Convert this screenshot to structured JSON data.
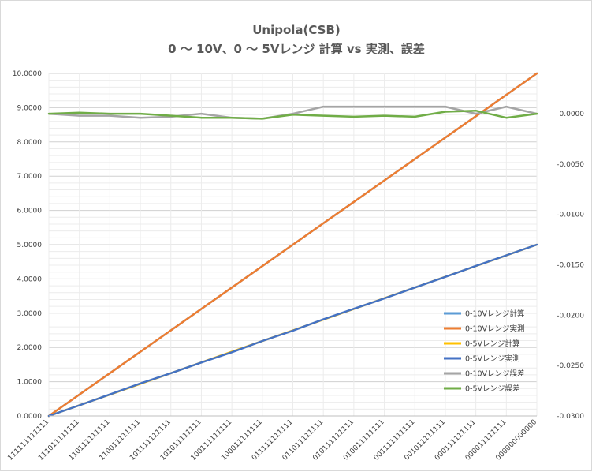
{
  "chart_data": {
    "type": "line",
    "title": "Unipola(CSB)",
    "subtitle": "0 ～ 10V、0 ～ 5Vレンジ 計算 vs 実測、誤差",
    "categories": [
      "111111111111",
      "111011111111",
      "110111111111",
      "110011111111",
      "101111111111",
      "101011111111",
      "100111111111",
      "100011111111",
      "011111111111",
      "011011111111",
      "010111111111",
      "010011111111",
      "001111111111",
      "001011111111",
      "000111111111",
      "000011111111",
      "000000000000"
    ],
    "y_left": {
      "lim": [
        0,
        10
      ],
      "ticks": [
        "0.0000",
        "1.0000",
        "2.0000",
        "3.0000",
        "4.0000",
        "5.0000",
        "6.0000",
        "7.0000",
        "8.0000",
        "9.0000",
        "10.0000"
      ]
    },
    "y_right": {
      "lim": [
        -0.03,
        0.004
      ],
      "ticks": [
        "0.0000",
        "-0.0050",
        "-0.0100",
        "-0.0150",
        "-0.0200",
        "-0.0250",
        "-0.0300"
      ]
    },
    "grid": true,
    "legend_position": "bottom-right",
    "series": [
      {
        "name": "0-10Vレンジ計算",
        "axis": "left",
        "color": "#5b9bd5",
        "width": 2.5,
        "values": [
          0.0,
          0.625,
          1.25,
          1.875,
          2.5,
          3.125,
          3.75,
          4.375,
          5.0,
          5.625,
          6.25,
          6.875,
          7.5,
          8.125,
          8.75,
          9.375,
          10.0
        ]
      },
      {
        "name": "0-10Vレンジ実測",
        "axis": "left",
        "color": "#ed7d31",
        "width": 2.5,
        "values": [
          0.0,
          0.625,
          1.25,
          1.875,
          2.5,
          3.125,
          3.75,
          4.375,
          5.0,
          5.625,
          6.25,
          6.875,
          7.5,
          8.125,
          8.75,
          9.375,
          10.0
        ]
      },
      {
        "name": "0-5Vレンジ計算",
        "axis": "left",
        "color": "#ffc000",
        "width": 2.5,
        "values": [
          0.0,
          0.3125,
          0.625,
          0.9375,
          1.25,
          1.5625,
          1.875,
          2.1875,
          2.5,
          2.8125,
          3.125,
          3.4375,
          3.75,
          4.0625,
          4.375,
          4.6875,
          5.0
        ]
      },
      {
        "name": "0-5Vレンジ実測",
        "axis": "left",
        "color": "#4472c4",
        "width": 2.5,
        "values": [
          0.0,
          0.31,
          0.63,
          0.95,
          1.25,
          1.56,
          1.86,
          2.19,
          2.49,
          2.82,
          3.13,
          3.43,
          3.75,
          4.06,
          4.38,
          4.69,
          5.0
        ]
      },
      {
        "name": "0-10Vレンジ誤差",
        "axis": "right",
        "color": "#a5a5a5",
        "width": 2.5,
        "values": [
          0.0,
          -0.0002,
          -0.0002,
          -0.0004,
          -0.0003,
          0.0,
          -0.0004,
          -0.0005,
          0.0,
          0.0007,
          0.0007,
          0.0007,
          0.0007,
          0.0007,
          0.0,
          0.0007,
          0.0
        ]
      },
      {
        "name": "0-5Vレンジ誤差",
        "axis": "right",
        "color": "#70ad47",
        "width": 2.5,
        "values": [
          0.0,
          0.0001,
          0.0,
          0.0,
          -0.0002,
          -0.0004,
          -0.0004,
          -0.0005,
          -0.0001,
          -0.0002,
          -0.0003,
          -0.0002,
          -0.0003,
          0.0002,
          0.0003,
          -0.0004,
          0.0
        ]
      }
    ]
  }
}
